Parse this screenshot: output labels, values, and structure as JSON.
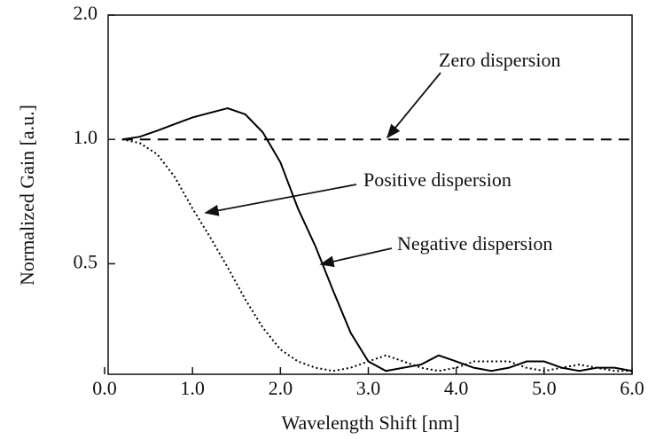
{
  "chart_data": {
    "type": "line",
    "xlabel": "Wavelength Shift [nm]",
    "ylabel": "Normalized Gain [a.u.]",
    "x": [
      0.2,
      0.4,
      0.6,
      0.8,
      1.0,
      1.2,
      1.4,
      1.6,
      1.8,
      2.0,
      2.2,
      2.4,
      2.6,
      2.8,
      3.0,
      3.2,
      3.4,
      3.6,
      3.8,
      4.0,
      4.2,
      4.4,
      4.6,
      4.8,
      5.0,
      5.2,
      5.4,
      5.6,
      5.8,
      6.0
    ],
    "series": [
      {
        "name": "Zero dispersion",
        "color": "#000000",
        "dash": "12 8",
        "values": [
          1.0,
          1.0,
          1.0,
          1.0,
          1.0,
          1.0,
          1.0,
          1.0,
          1.0,
          1.0,
          1.0,
          1.0,
          1.0,
          1.0,
          1.0,
          1.0,
          1.0,
          1.0,
          1.0,
          1.0,
          1.0,
          1.0,
          1.0,
          1.0,
          1.0,
          1.0,
          1.0,
          1.0,
          1.0,
          1.0
        ]
      },
      {
        "name": "Positive dispersion",
        "color": "#000000",
        "dash": "2 3",
        "values": [
          1.0,
          0.98,
          0.92,
          0.81,
          0.68,
          0.58,
          0.49,
          0.41,
          0.35,
          0.31,
          0.29,
          0.28,
          0.275,
          0.28,
          0.29,
          0.3,
          0.29,
          0.28,
          0.275,
          0.28,
          0.29,
          0.29,
          0.29,
          0.28,
          0.275,
          0.28,
          0.285,
          0.28,
          0.275,
          0.275
        ]
      },
      {
        "name": "Negative dispersion",
        "color": "#000000",
        "dash": "none",
        "values": [
          1.0,
          1.015,
          1.05,
          1.09,
          1.13,
          1.16,
          1.19,
          1.15,
          1.04,
          0.88,
          0.68,
          0.55,
          0.43,
          0.34,
          0.29,
          0.275,
          0.28,
          0.285,
          0.3,
          0.29,
          0.28,
          0.275,
          0.28,
          0.29,
          0.29,
          0.28,
          0.275,
          0.28,
          0.28,
          0.275
        ]
      }
    ],
    "xlim": [
      0,
      6.0
    ],
    "xticks": [
      {
        "value": 0,
        "label": "0.0"
      },
      {
        "value": 1,
        "label": "1.0"
      },
      {
        "value": 2,
        "label": "2.0"
      },
      {
        "value": 3,
        "label": "3.0"
      },
      {
        "value": 4,
        "label": "4.0"
      },
      {
        "value": 5,
        "label": "5.0"
      },
      {
        "value": 6,
        "label": "6.0"
      }
    ],
    "ylim": [
      0.27,
      2.0
    ],
    "yticks": [
      {
        "value": 0.5,
        "label": "0.5"
      },
      {
        "value": 1,
        "label": "1.0"
      },
      {
        "value": 2,
        "label": "2.0"
      }
    ],
    "ylog": true
  }
}
